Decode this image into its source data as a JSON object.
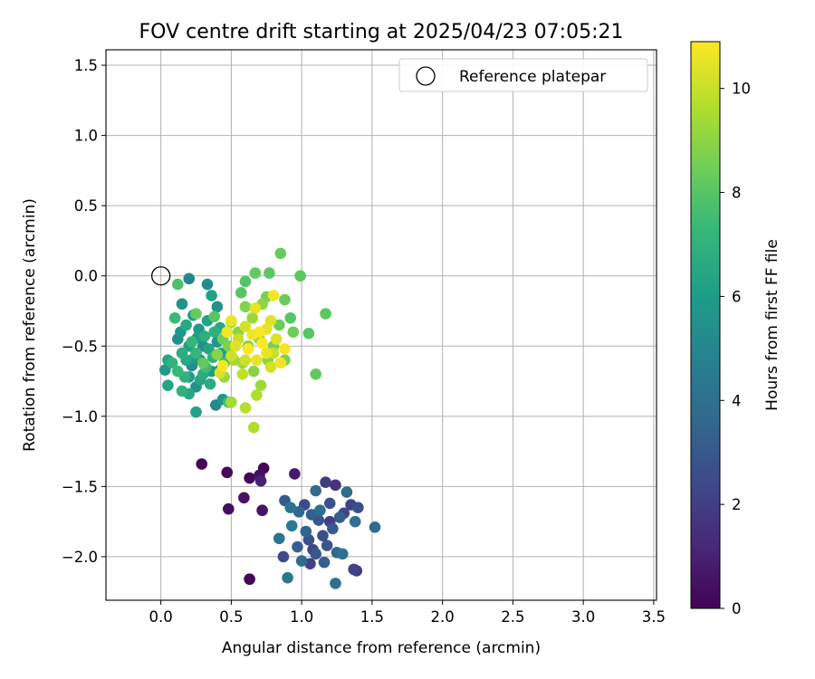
{
  "chart_data": {
    "type": "scatter",
    "title": "FOV centre drift starting at 2025/04/23 07:05:21",
    "xlabel": "Angular distance from reference (arcmin)",
    "ylabel": "Rotation from reference (arcmin)",
    "xlim": [
      -0.39,
      3.52
    ],
    "ylim": [
      -2.31,
      1.61
    ],
    "xticks": [
      "0.0",
      "0.5",
      "1.0",
      "1.5",
      "2.0",
      "2.5",
      "3.0",
      "3.5"
    ],
    "yticks": [
      "1.5",
      "1.0",
      "0.5",
      "0.0",
      "−0.5",
      "−1.0",
      "−1.5",
      "−2.0"
    ],
    "grid": true,
    "legend": {
      "label": "Reference platepar",
      "placement": "top-right"
    },
    "reference_point": {
      "x": 0.0,
      "y": 0.0
    },
    "colorbar": {
      "label": "Hours from first FF file",
      "colormap": "viridis",
      "range": [
        0,
        10.9
      ],
      "ticks": [
        "0",
        "2",
        "4",
        "6",
        "8",
        "10"
      ]
    },
    "points": [
      {
        "x": 0.29,
        "y": -1.34,
        "h": 0.2
      },
      {
        "x": 0.47,
        "y": -1.4,
        "h": 0.3
      },
      {
        "x": 0.63,
        "y": -1.44,
        "h": 0.1
      },
      {
        "x": 0.7,
        "y": -1.42,
        "h": 0.4
      },
      {
        "x": 0.73,
        "y": -1.37,
        "h": 0.2
      },
      {
        "x": 0.59,
        "y": -1.58,
        "h": 0.5
      },
      {
        "x": 0.48,
        "y": -1.66,
        "h": 0.3
      },
      {
        "x": 0.72,
        "y": -1.67,
        "h": 0.6
      },
      {
        "x": 0.63,
        "y": -2.16,
        "h": 0.2
      },
      {
        "x": 0.95,
        "y": -1.41,
        "h": 0.8
      },
      {
        "x": 0.71,
        "y": -1.46,
        "h": 1.0
      },
      {
        "x": 1.24,
        "y": -1.49,
        "h": 1.6
      },
      {
        "x": 1.17,
        "y": -1.47,
        "h": 2.0
      },
      {
        "x": 1.39,
        "y": -2.1,
        "h": 1.8
      },
      {
        "x": 1.1,
        "y": -1.53,
        "h": 3.7
      },
      {
        "x": 1.32,
        "y": -1.54,
        "h": 3.9
      },
      {
        "x": 1.02,
        "y": -1.63,
        "h": 2.5
      },
      {
        "x": 1.07,
        "y": -1.7,
        "h": 3.3
      },
      {
        "x": 1.2,
        "y": -1.62,
        "h": 2.8
      },
      {
        "x": 1.35,
        "y": -1.63,
        "h": 2.2
      },
      {
        "x": 1.4,
        "y": -1.65,
        "h": 2.6
      },
      {
        "x": 0.88,
        "y": -1.6,
        "h": 3.0
      },
      {
        "x": 0.92,
        "y": -1.65,
        "h": 4.2
      },
      {
        "x": 0.98,
        "y": -1.68,
        "h": 3.6
      },
      {
        "x": 1.12,
        "y": -1.74,
        "h": 2.9
      },
      {
        "x": 1.27,
        "y": -1.72,
        "h": 3.2
      },
      {
        "x": 1.3,
        "y": -1.69,
        "h": 2.4
      },
      {
        "x": 1.38,
        "y": -1.75,
        "h": 4.0
      },
      {
        "x": 1.52,
        "y": -1.79,
        "h": 3.8
      },
      {
        "x": 0.93,
        "y": -1.78,
        "h": 4.5
      },
      {
        "x": 1.03,
        "y": -1.82,
        "h": 3.5
      },
      {
        "x": 1.15,
        "y": -1.85,
        "h": 2.7
      },
      {
        "x": 1.22,
        "y": -1.8,
        "h": 3.1
      },
      {
        "x": 0.84,
        "y": -1.87,
        "h": 4.3
      },
      {
        "x": 0.97,
        "y": -1.93,
        "h": 3.4
      },
      {
        "x": 1.08,
        "y": -1.95,
        "h": 2.3
      },
      {
        "x": 1.18,
        "y": -1.92,
        "h": 2.9
      },
      {
        "x": 1.25,
        "y": -1.97,
        "h": 3.6
      },
      {
        "x": 1.1,
        "y": -1.98,
        "h": 3.0
      },
      {
        "x": 0.87,
        "y": -2.0,
        "h": 2.5
      },
      {
        "x": 1.0,
        "y": -2.03,
        "h": 3.8
      },
      {
        "x": 1.06,
        "y": -2.05,
        "h": 2.1
      },
      {
        "x": 1.16,
        "y": -2.04,
        "h": 3.3
      },
      {
        "x": 1.29,
        "y": -1.98,
        "h": 4.1
      },
      {
        "x": 1.37,
        "y": -2.09,
        "h": 2.2
      },
      {
        "x": 0.9,
        "y": -2.15,
        "h": 4.4
      },
      {
        "x": 1.24,
        "y": -2.19,
        "h": 4.0
      },
      {
        "x": 1.05,
        "y": -1.88,
        "h": 2.6
      },
      {
        "x": 1.13,
        "y": -1.67,
        "h": 3.9
      },
      {
        "x": 1.2,
        "y": -1.75,
        "h": 2.1
      },
      {
        "x": 0.2,
        "y": -0.02,
        "h": 5.0
      },
      {
        "x": 0.33,
        "y": -0.06,
        "h": 5.3
      },
      {
        "x": 0.15,
        "y": -0.2,
        "h": 5.6
      },
      {
        "x": 0.23,
        "y": -0.28,
        "h": 5.9
      },
      {
        "x": 0.36,
        "y": -0.14,
        "h": 6.2
      },
      {
        "x": 0.4,
        "y": -0.22,
        "h": 5.5
      },
      {
        "x": 0.1,
        "y": -0.3,
        "h": 7.4
      },
      {
        "x": 0.18,
        "y": -0.35,
        "h": 6.6
      },
      {
        "x": 0.27,
        "y": -0.38,
        "h": 5.8
      },
      {
        "x": 0.31,
        "y": -0.43,
        "h": 6.9
      },
      {
        "x": 0.12,
        "y": -0.45,
        "h": 5.4
      },
      {
        "x": 0.2,
        "y": -0.5,
        "h": 6.1
      },
      {
        "x": 0.25,
        "y": -0.55,
        "h": 7.2
      },
      {
        "x": 0.34,
        "y": -0.52,
        "h": 6.4
      },
      {
        "x": 0.4,
        "y": -0.47,
        "h": 5.7
      },
      {
        "x": 0.15,
        "y": -0.55,
        "h": 6.8
      },
      {
        "x": 0.28,
        "y": -0.6,
        "h": 5.2
      },
      {
        "x": 0.37,
        "y": -0.58,
        "h": 7.0
      },
      {
        "x": 0.05,
        "y": -0.6,
        "h": 6.3
      },
      {
        "x": 0.03,
        "y": -0.67,
        "h": 5.9
      },
      {
        "x": 0.12,
        "y": -0.68,
        "h": 7.3
      },
      {
        "x": 0.2,
        "y": -0.72,
        "h": 6.0
      },
      {
        "x": 0.3,
        "y": -0.7,
        "h": 6.7
      },
      {
        "x": 0.42,
        "y": -0.67,
        "h": 5.6
      },
      {
        "x": 0.08,
        "y": -0.62,
        "h": 7.1
      },
      {
        "x": 0.18,
        "y": -0.6,
        "h": 6.5
      },
      {
        "x": 0.22,
        "y": -0.64,
        "h": 5.3
      },
      {
        "x": 0.32,
        "y": -0.65,
        "h": 7.5
      },
      {
        "x": 0.43,
        "y": -0.55,
        "h": 6.2
      },
      {
        "x": 0.05,
        "y": -0.78,
        "h": 6.4
      },
      {
        "x": 0.15,
        "y": -0.82,
        "h": 7.0
      },
      {
        "x": 0.25,
        "y": -0.79,
        "h": 5.5
      },
      {
        "x": 0.35,
        "y": -0.77,
        "h": 6.8
      },
      {
        "x": 0.44,
        "y": -0.88,
        "h": 5.8
      },
      {
        "x": 0.39,
        "y": -0.92,
        "h": 5.1
      },
      {
        "x": 0.25,
        "y": -0.97,
        "h": 6.2
      },
      {
        "x": 0.2,
        "y": -0.84,
        "h": 6.6
      },
      {
        "x": 0.48,
        "y": -0.9,
        "h": 7.6
      },
      {
        "x": 0.26,
        "y": -0.44,
        "h": 6.0
      },
      {
        "x": 0.38,
        "y": -0.4,
        "h": 6.9
      },
      {
        "x": 0.3,
        "y": -0.5,
        "h": 5.4
      },
      {
        "x": 0.22,
        "y": -0.47,
        "h": 7.2
      },
      {
        "x": 0.33,
        "y": -0.32,
        "h": 6.3
      },
      {
        "x": 0.14,
        "y": -0.4,
        "h": 5.7
      },
      {
        "x": 0.42,
        "y": -0.37,
        "h": 6.5
      },
      {
        "x": 0.45,
        "y": -0.62,
        "h": 7.4
      },
      {
        "x": 0.24,
        "y": -0.58,
        "h": 6.1
      },
      {
        "x": 0.36,
        "y": -0.68,
        "h": 5.9
      },
      {
        "x": 0.17,
        "y": -0.72,
        "h": 7.0
      },
      {
        "x": 0.28,
        "y": -0.74,
        "h": 6.4
      },
      {
        "x": 0.12,
        "y": -0.06,
        "h": 7.8
      },
      {
        "x": 0.57,
        "y": -0.12,
        "h": 8.0
      },
      {
        "x": 0.6,
        "y": -0.04,
        "h": 7.9
      },
      {
        "x": 0.67,
        "y": 0.02,
        "h": 8.2
      },
      {
        "x": 0.77,
        "y": 0.02,
        "h": 8.1
      },
      {
        "x": 0.85,
        "y": 0.16,
        "h": 8.3
      },
      {
        "x": 0.99,
        "y": 0.0,
        "h": 8.1
      },
      {
        "x": 0.88,
        "y": -0.17,
        "h": 8.4
      },
      {
        "x": 1.05,
        "y": -0.41,
        "h": 8.0
      },
      {
        "x": 1.1,
        "y": -0.7,
        "h": 8.2
      },
      {
        "x": 1.17,
        "y": -0.27,
        "h": 8.1
      },
      {
        "x": 0.75,
        "y": -0.15,
        "h": 8.6
      },
      {
        "x": 0.92,
        "y": -0.3,
        "h": 8.0
      },
      {
        "x": 0.94,
        "y": -0.4,
        "h": 8.5
      },
      {
        "x": 0.88,
        "y": -0.6,
        "h": 8.7
      },
      {
        "x": 0.72,
        "y": -0.2,
        "h": 9.0
      },
      {
        "x": 0.65,
        "y": -0.3,
        "h": 9.2
      },
      {
        "x": 0.55,
        "y": -0.4,
        "h": 8.9
      },
      {
        "x": 0.62,
        "y": -0.5,
        "h": 8.8
      },
      {
        "x": 0.7,
        "y": -0.45,
        "h": 9.1
      },
      {
        "x": 0.8,
        "y": -0.5,
        "h": 8.6
      },
      {
        "x": 0.84,
        "y": -0.35,
        "h": 8.4
      },
      {
        "x": 0.58,
        "y": -0.62,
        "h": 9.3
      },
      {
        "x": 0.66,
        "y": -0.68,
        "h": 8.9
      },
      {
        "x": 0.48,
        "y": -0.5,
        "h": 8.7
      },
      {
        "x": 0.52,
        "y": -0.6,
        "h": 9.4
      },
      {
        "x": 0.44,
        "y": -0.45,
        "h": 8.5
      },
      {
        "x": 0.76,
        "y": -0.6,
        "h": 9.0
      },
      {
        "x": 0.71,
        "y": -0.78,
        "h": 9.3
      },
      {
        "x": 0.68,
        "y": -0.85,
        "h": 9.6
      },
      {
        "x": 0.66,
        "y": -1.08,
        "h": 9.6
      },
      {
        "x": 0.6,
        "y": -0.94,
        "h": 9.7
      },
      {
        "x": 0.5,
        "y": -0.9,
        "h": 9.4
      },
      {
        "x": 0.45,
        "y": -0.72,
        "h": 9.2
      },
      {
        "x": 0.25,
        "y": -0.27,
        "h": 8.3
      },
      {
        "x": 0.38,
        "y": -0.29,
        "h": 8.0
      },
      {
        "x": 0.5,
        "y": -0.33,
        "h": 9.1
      },
      {
        "x": 0.6,
        "y": -0.22,
        "h": 8.8
      },
      {
        "x": 0.3,
        "y": -0.62,
        "h": 8.2
      },
      {
        "x": 0.4,
        "y": -0.56,
        "h": 8.9
      },
      {
        "x": 0.8,
        "y": -0.14,
        "h": 10.7
      },
      {
        "x": 0.67,
        "y": -0.23,
        "h": 10.5
      },
      {
        "x": 0.5,
        "y": -0.32,
        "h": 10.6
      },
      {
        "x": 0.6,
        "y": -0.36,
        "h": 10.2
      },
      {
        "x": 0.7,
        "y": -0.4,
        "h": 10.8
      },
      {
        "x": 0.78,
        "y": -0.32,
        "h": 10.4
      },
      {
        "x": 0.55,
        "y": -0.45,
        "h": 10.0
      },
      {
        "x": 0.62,
        "y": -0.52,
        "h": 10.9
      },
      {
        "x": 0.75,
        "y": -0.55,
        "h": 10.6
      },
      {
        "x": 0.82,
        "y": -0.45,
        "h": 10.3
      },
      {
        "x": 0.85,
        "y": -0.62,
        "h": 10.7
      },
      {
        "x": 0.5,
        "y": -0.57,
        "h": 10.1
      },
      {
        "x": 0.44,
        "y": -0.64,
        "h": 10.8
      },
      {
        "x": 0.68,
        "y": -0.6,
        "h": 10.5
      },
      {
        "x": 0.58,
        "y": -0.7,
        "h": 9.9
      },
      {
        "x": 0.78,
        "y": -0.65,
        "h": 10.2
      },
      {
        "x": 0.72,
        "y": -0.48,
        "h": 10.9
      },
      {
        "x": 0.65,
        "y": -0.42,
        "h": 10.6
      },
      {
        "x": 0.53,
        "y": -0.5,
        "h": 10.4
      },
      {
        "x": 0.8,
        "y": -0.55,
        "h": 10.0
      },
      {
        "x": 0.47,
        "y": -0.4,
        "h": 10.7
      },
      {
        "x": 0.42,
        "y": -0.69,
        "h": 10.3
      },
      {
        "x": 0.88,
        "y": -0.52,
        "h": 10.8
      },
      {
        "x": 0.6,
        "y": -0.6,
        "h": 10.1
      },
      {
        "x": 0.75,
        "y": -0.38,
        "h": 10.5
      }
    ]
  }
}
